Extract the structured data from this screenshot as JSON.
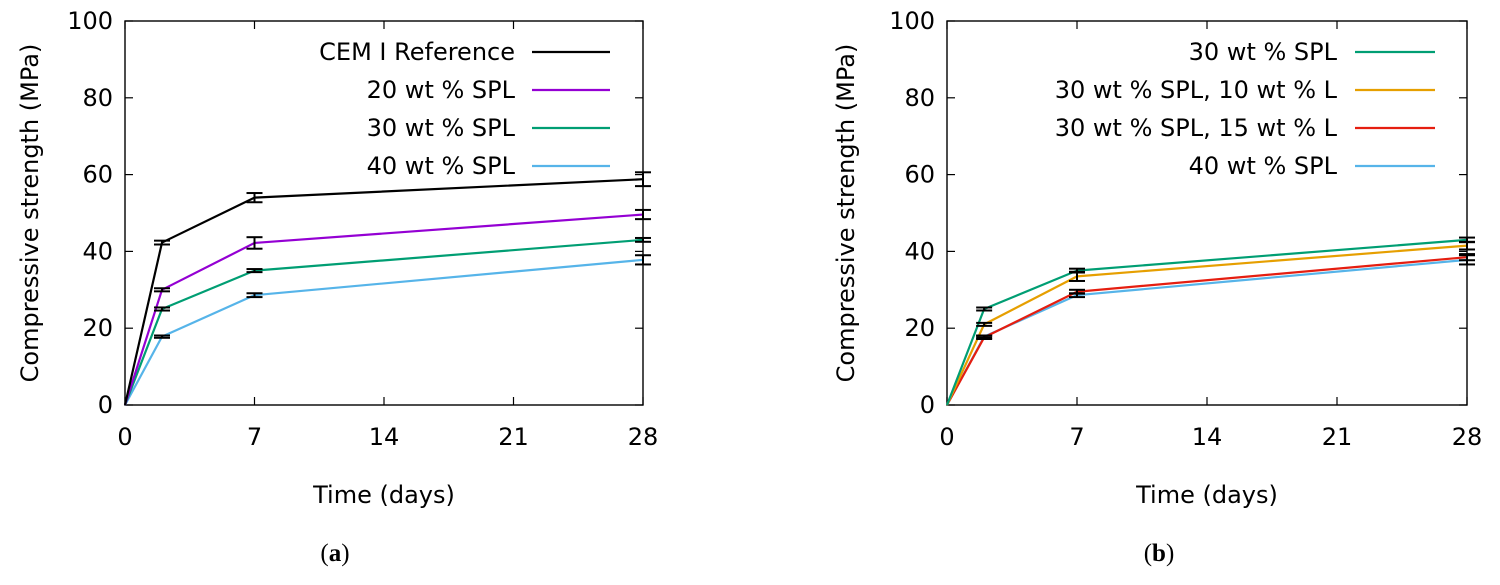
{
  "chart_data": [
    {
      "type": "line",
      "panel_label": "a",
      "xlabel": "Time (days)",
      "ylabel": "Compressive strength (MPa)",
      "xlim": [
        0,
        28
      ],
      "ylim": [
        0,
        100
      ],
      "xticks": [
        0,
        7,
        14,
        21,
        28
      ],
      "yticks": [
        0,
        20,
        40,
        60,
        80,
        100
      ],
      "legend_position": "top-right",
      "series": [
        {
          "name": "CEM I Reference",
          "color": "#000000",
          "x": [
            0,
            2,
            7,
            28
          ],
          "y": [
            0,
            42.3,
            54.0,
            58.8
          ],
          "err": [
            0,
            0.5,
            1.2,
            1.8
          ]
        },
        {
          "name": "20 wt % SPL",
          "color": "#9400D3",
          "x": [
            0,
            2,
            7,
            28
          ],
          "y": [
            0,
            30.0,
            42.2,
            49.6
          ],
          "err": [
            0,
            0.4,
            1.5,
            1.2
          ]
        },
        {
          "name": "30 wt % SPL",
          "color": "#009E73",
          "x": [
            0,
            2,
            7,
            28
          ],
          "y": [
            0,
            25.0,
            35.0,
            43.0
          ],
          "err": [
            0,
            0.4,
            0.4,
            0.5
          ]
        },
        {
          "name": "40 wt % SPL",
          "color": "#56B4E9",
          "x": [
            0,
            2,
            7,
            28
          ],
          "y": [
            0,
            17.8,
            28.6,
            37.8
          ],
          "err": [
            0,
            0.3,
            0.5,
            1.2
          ]
        }
      ]
    },
    {
      "type": "line",
      "panel_label": "b",
      "xlabel": "Time (days)",
      "ylabel": "Compressive strength (MPa)",
      "xlim": [
        0,
        28
      ],
      "ylim": [
        0,
        100
      ],
      "xticks": [
        0,
        7,
        14,
        21,
        28
      ],
      "yticks": [
        0,
        20,
        40,
        60,
        80,
        100
      ],
      "legend_position": "top-right",
      "series": [
        {
          "name": "30 wt % SPL",
          "color": "#009E73",
          "x": [
            0,
            2,
            7,
            28
          ],
          "y": [
            0,
            25.0,
            35.0,
            43.0
          ],
          "err": [
            0,
            0.4,
            0.5,
            0.6
          ]
        },
        {
          "name": "30 wt % SPL, 10 wt % L",
          "color": "#E69F00",
          "x": [
            0,
            2,
            7,
            28
          ],
          "y": [
            0,
            21.0,
            33.5,
            41.5
          ],
          "err": [
            0,
            0.4,
            1.2,
            1.0
          ]
        },
        {
          "name": "30 wt % SPL, 15 wt % L",
          "color": "#E51E10",
          "x": [
            0,
            2,
            7,
            28
          ],
          "y": [
            0,
            17.6,
            29.5,
            38.5
          ],
          "err": [
            0,
            0.4,
            0.5,
            0.8
          ]
        },
        {
          "name": "40 wt % SPL",
          "color": "#56B4E9",
          "x": [
            0,
            2,
            7,
            28
          ],
          "y": [
            0,
            17.8,
            28.6,
            37.8
          ],
          "err": [
            0,
            0.3,
            0.5,
            1.2
          ]
        }
      ]
    }
  ]
}
